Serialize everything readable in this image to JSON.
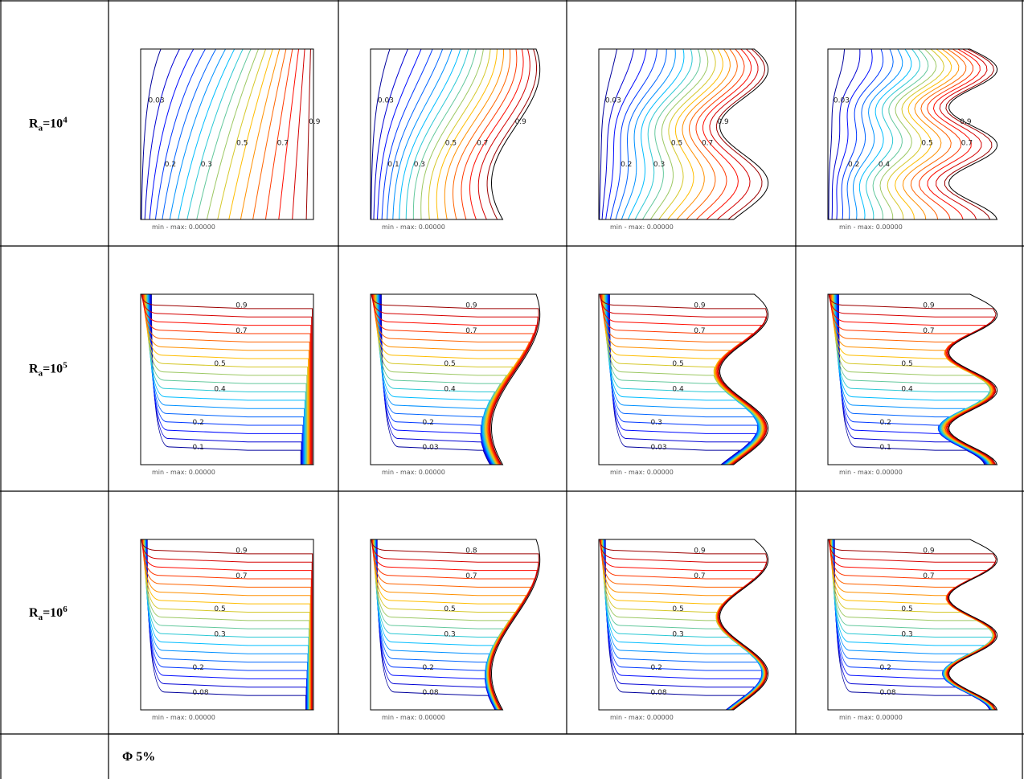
{
  "rows": [
    {
      "label": {
        "base": "R",
        "sub": "a",
        "eq": "=10",
        "sup": "4"
      },
      "plots": [
        {
          "caption": "min - max: 0.00000",
          "contour_labels": [
            "0.03",
            "0.2",
            "0.3",
            "0.5",
            "0.7",
            "0.9"
          ]
        },
        {
          "caption": "min - max: 0.00000",
          "contour_labels": [
            "0.03",
            "0.1",
            "0.3",
            "0.5",
            "0.7",
            "0.9"
          ]
        },
        {
          "caption": "min - max: 0.00000",
          "contour_labels": [
            "0.03",
            "0.2",
            "0.3",
            "0.5",
            "0.7",
            "0.9"
          ]
        },
        {
          "caption": "min - max: 0.00000",
          "contour_labels": [
            "0.03",
            "0.2",
            "0.4",
            "0.5",
            "0.7",
            "0.9"
          ]
        }
      ]
    },
    {
      "label": {
        "base": "R",
        "sub": "a",
        "eq": "=10",
        "sup": "5"
      },
      "plots": [
        {
          "caption": "min - max: 0.00000",
          "contour_labels": [
            "0.1",
            "0.2",
            "0.4",
            "0.5",
            "0.7",
            "0.9"
          ]
        },
        {
          "caption": "min - max: 0.00000",
          "contour_labels": [
            "0.03",
            "0.2",
            "0.4",
            "0.5",
            "0.7",
            "0.9"
          ]
        },
        {
          "caption": "min - max: 0.00000",
          "contour_labels": [
            "0.03",
            "0.3",
            "0.4",
            "0.5",
            "0.7",
            "0.9"
          ]
        },
        {
          "caption": "min - max: 0.00000",
          "contour_labels": [
            "0.1",
            "0.2",
            "0.4",
            "0.5",
            "0.7",
            "0.9"
          ]
        }
      ]
    },
    {
      "label": {
        "base": "R",
        "sub": "a",
        "eq": "=10",
        "sup": "6"
      },
      "plots": [
        {
          "caption": "min - max: 0.00000",
          "contour_labels": [
            "0.08",
            "0.2",
            "0.3",
            "0.5",
            "0.7",
            "0.9"
          ]
        },
        {
          "caption": "min - max: 0.00000",
          "contour_labels": [
            "0.08",
            "0.2",
            "0.3",
            "0.5",
            "0.7",
            "0.8"
          ]
        },
        {
          "caption": "min - max: 0.00000",
          "contour_labels": [
            "0.08",
            "0.2",
            "0.3",
            "0.5",
            "0.7",
            "0.9"
          ]
        },
        {
          "caption": "min - max: 0.00000",
          "contour_labels": [
            "0.08",
            "0.2",
            "0.3",
            "0.5",
            "0.7",
            "0.9"
          ]
        }
      ]
    }
  ],
  "footer": "Φ 5%"
}
